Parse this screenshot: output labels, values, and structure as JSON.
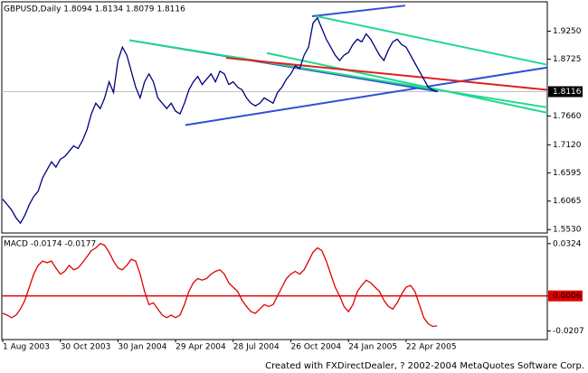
{
  "chart_data": {
    "type": "line",
    "categories": [
      "1 Aug 2003",
      null,
      null,
      null,
      null,
      null,
      null,
      null,
      null,
      null,
      null,
      null,
      null,
      "30 Oct 2003",
      null,
      null,
      null,
      null,
      null,
      null,
      null,
      null,
      null,
      null,
      null,
      null,
      "30 Jan 2004",
      null,
      null,
      null,
      null,
      null,
      null,
      null,
      null,
      null,
      null,
      null,
      null,
      "29 Apr 2004",
      null,
      null,
      null,
      null,
      null,
      null,
      null,
      null,
      null,
      null,
      null,
      null,
      "28 Jul 2004",
      null,
      null,
      null,
      null,
      null,
      null,
      null,
      null,
      null,
      null,
      null,
      null,
      "26 Oct 2004",
      null,
      null,
      null,
      null,
      null,
      null,
      null,
      null,
      null,
      null,
      null,
      null,
      "24 Jan 2005",
      null,
      null,
      null,
      null,
      null,
      null,
      null,
      null,
      null,
      null,
      null,
      null,
      "22 Apr 2005",
      null,
      null,
      null,
      null,
      null,
      null,
      null
    ],
    "footer": "Created with FXDirectDealer, ? 2002-2004 MetaQuotes Software Corp.",
    "panels": [
      {
        "type": "line",
        "title": "GBPUSD,Daily  1.8094 1.8134 1.8079 1.8116",
        "ylim": [
          1.55,
          1.975
        ],
        "yticks": [
          {
            "value": 1.925,
            "label": "1.9250"
          },
          {
            "value": 1.8725,
            "label": "1.8725"
          },
          {
            "value": 1.766,
            "label": "1.7660"
          },
          {
            "value": 1.712,
            "label": "1.7120"
          },
          1.6595,
          {
            "value": 1.6065,
            "label": "1.6065"
          },
          {
            "value": 1.553,
            "label": "1.5530"
          }
        ],
        "last_price": {
          "value": 1.8116,
          "label": "1.8116"
        },
        "series": [
          {
            "color": "#000080",
            "values": [
              1.61,
              1.6,
              1.59,
              1.575,
              1.565,
              1.58,
              1.6,
              1.615,
              1.625,
              1.65,
              1.665,
              1.68,
              1.67,
              1.685,
              1.69,
              1.7,
              1.71,
              1.705,
              1.72,
              1.74,
              1.77,
              1.79,
              1.78,
              1.8,
              1.83,
              1.81,
              1.87,
              1.895,
              1.88,
              1.85,
              1.82,
              1.8,
              1.83,
              1.845,
              1.83,
              1.8,
              1.79,
              1.78,
              1.79,
              1.775,
              1.77,
              1.79,
              1.815,
              1.83,
              1.84,
              1.825,
              1.835,
              1.845,
              1.83,
              1.85,
              1.845,
              1.825,
              1.83,
              1.82,
              1.815,
              1.8,
              1.79,
              1.785,
              1.79,
              1.8,
              1.795,
              1.79,
              1.81,
              1.82,
              1.835,
              1.845,
              1.86,
              1.855,
              1.88,
              1.895,
              1.94,
              1.95,
              1.93,
              1.91,
              1.895,
              1.88,
              1.87,
              1.88,
              1.885,
              1.9,
              1.91,
              1.905,
              1.92,
              1.91,
              1.895,
              1.88,
              1.87,
              1.89,
              1.905,
              1.91,
              1.9,
              1.895,
              1.88,
              1.865,
              1.85,
              1.835,
              1.82,
              1.815,
              1.8116
            ]
          }
        ],
        "trendlines": [
          {
            "color": "#3050d0",
            "x": [
              69.8,
              90.8
            ],
            "values": [
              1.953,
              1.973
            ]
          },
          {
            "color": "#3050d0",
            "x": [
              41.2,
              122.9
            ],
            "values": [
              1.749,
              1.857
            ]
          },
          {
            "color": "#3050d0",
            "x": [
              28.6,
              98.2
            ],
            "values": [
              1.908,
              1.812
            ]
          },
          {
            "color": "#20d890",
            "x": [
              28.6,
              122.9
            ],
            "values": [
              1.908,
              1.782
            ]
          },
          {
            "color": "#20d890",
            "x": [
              70.8,
              122.9
            ],
            "values": [
              1.953,
              1.862
            ]
          },
          {
            "color": "#20d890",
            "x": [
              59.6,
              122.9
            ],
            "values": [
              1.884,
              1.772
            ]
          },
          {
            "color": "#e02020",
            "x": [
              50.4,
              122.9
            ],
            "values": [
              1.875,
              1.815
            ]
          }
        ]
      },
      {
        "type": "line",
        "title": "MACD  -0.0174 -0.0177",
        "ylim": [
          -0.0249,
          0.0356
        ],
        "yticks": [
          0.0324,
          0.0006,
          -0.0207
        ],
        "level": {
          "value": 0.0006,
          "color": "#e00000"
        },
        "series": [
          {
            "color": "#e00000",
            "values": [
              -0.01,
              -0.0111,
              -0.0127,
              -0.0111,
              -0.0074,
              -0.0021,
              0.0059,
              0.0139,
              0.0192,
              0.0218,
              0.0208,
              0.0218,
              0.0176,
              0.0139,
              0.0155,
              0.0192,
              0.0165,
              0.0176,
              0.0208,
              0.0245,
              0.0282,
              0.0298,
              0.0325,
              0.0314,
              0.0272,
              0.0218,
              0.0176,
              0.0165,
              0.0192,
              0.0229,
              0.0218,
              0.0139,
              0.0033,
              -0.0047,
              -0.0036,
              -0.0074,
              -0.0111,
              -0.0127,
              -0.0111,
              -0.0127,
              -0.0111,
              -0.0047,
              0.0033,
              0.0086,
              0.0112,
              0.0102,
              0.0112,
              0.0139,
              0.0155,
              0.0165,
              0.0139,
              0.0086,
              0.0059,
              0.0033,
              -0.0021,
              -0.0058,
              -0.009,
              -0.01,
              -0.0074,
              -0.0047,
              -0.0058,
              -0.0047,
              0.0006,
              0.0059,
              0.0112,
              0.0139,
              0.0155,
              0.0139,
              0.0165,
              0.0218,
              0.0272,
              0.0298,
              0.0282,
              0.0218,
              0.0139,
              0.0059,
              0.0006,
              -0.0058,
              -0.009,
              -0.0047,
              0.0033,
              0.007,
              0.0102,
              0.0086,
              0.0059,
              0.0033,
              -0.0021,
              -0.0058,
              -0.0074,
              -0.0036,
              0.0017,
              0.0059,
              0.007,
              0.0033,
              -0.0047,
              -0.0127,
              -0.0164,
              -0.018,
              -0.0177
            ]
          }
        ]
      }
    ]
  }
}
